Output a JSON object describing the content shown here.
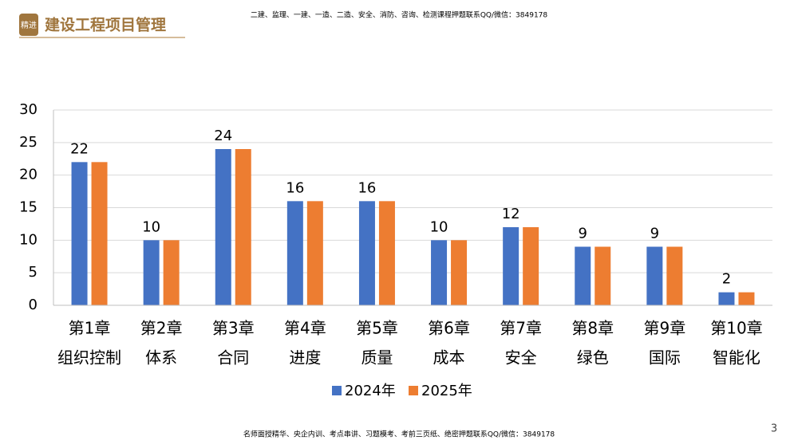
{
  "header": {
    "logo": "精进",
    "title": "建设工程项目管理",
    "note": "二建、监理、一建、一造、二造、安全、消防、咨询、检测课程押题联系QQ/微信：3849178"
  },
  "footer": {
    "note": "名师面授精华、央企内训、考点串讲、习题模考、考前三页纸、绝密押题联系QQ/微信：3849178",
    "page": "3"
  },
  "chart_data": {
    "type": "bar",
    "categories": [
      [
        "第1章",
        "组织控制"
      ],
      [
        "第2章",
        "体系"
      ],
      [
        "第3章",
        "合同"
      ],
      [
        "第4章",
        "进度"
      ],
      [
        "第5章",
        "质量"
      ],
      [
        "第6章",
        "成本"
      ],
      [
        "第7章",
        "安全"
      ],
      [
        "第8章",
        "绿色"
      ],
      [
        "第9章",
        "国际"
      ],
      [
        "第10章",
        "智能化"
      ]
    ],
    "series": [
      {
        "name": "2024年",
        "color": "#4472c4",
        "values": [
          22,
          10,
          24,
          16,
          16,
          10,
          12,
          9,
          9,
          2
        ],
        "data_labels": true
      },
      {
        "name": "2025年",
        "color": "#ed7d31",
        "values": [
          22,
          10,
          24,
          16,
          16,
          10,
          12,
          9,
          9,
          2
        ]
      }
    ],
    "ylim": [
      0,
      30
    ],
    "yticks": [
      0,
      5,
      10,
      15,
      20,
      25,
      30
    ],
    "grid": true,
    "legend": "bottom"
  }
}
